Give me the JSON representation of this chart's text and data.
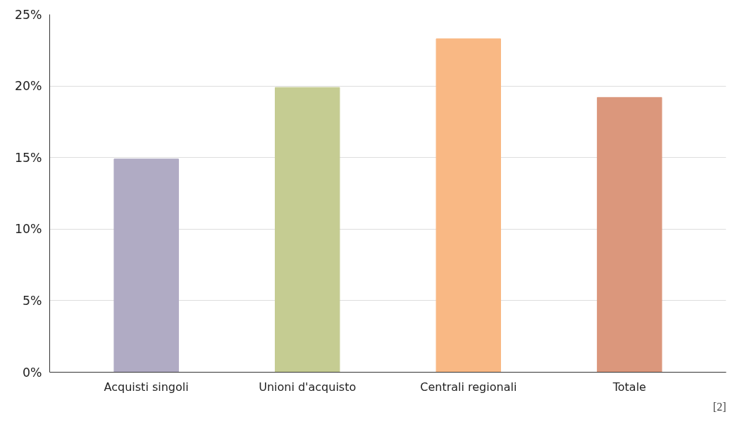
{
  "chart_data": {
    "type": "bar",
    "categories": [
      "Acquisti singoli",
      "Unioni d'acquisto",
      "Centrali regionali",
      "Totale"
    ],
    "values": [
      14.9,
      19.9,
      23.3,
      19.2
    ],
    "colors": [
      "#b0abc4",
      "#c5cc92",
      "#f9b884",
      "#db977c"
    ],
    "ylim": [
      0,
      25
    ],
    "yticks": [
      {
        "value": 0,
        "label": "0%"
      },
      {
        "value": 5,
        "label": "5%"
      },
      {
        "value": 10,
        "label": "10%"
      },
      {
        "value": 15,
        "label": "15%"
      },
      {
        "value": 20,
        "label": "20%"
      },
      {
        "value": 25,
        "label": "25%"
      }
    ],
    "grid": "y",
    "annotations": [
      "[2]"
    ]
  }
}
